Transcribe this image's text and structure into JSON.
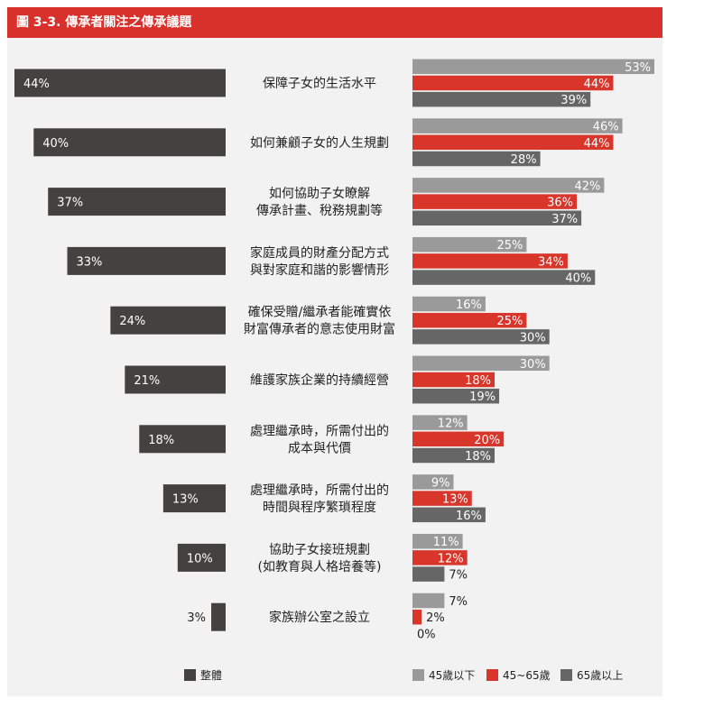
{
  "figure_title": "圖 3-3. 傳承者關注之傳承議題",
  "colors": {
    "title_bar": "#d8302a",
    "overall": "#454141",
    "under45": "#9a9a9a",
    "age45to65": "#d8352b",
    "over65": "#666666",
    "panel": "#f2f2f2"
  },
  "legend": {
    "overall": "整體",
    "under45": "45歲以下",
    "age45to65": "45~65歲",
    "over65": "65歲以上"
  },
  "chart_data": {
    "type": "bar",
    "title": "圖 3-3. 傳承者關注之傳承議題",
    "unit": "%",
    "categories": [
      "保障子女的生活水平",
      "如何兼顧子女的人生規劃",
      "如何協助子女瞭解\n傳承計畫、稅務規劃等",
      "家庭成員的財產分配方式\n與對家庭和諧的影響情形",
      "確保受贈/繼承者能確實依\n財富傳承者的意志使用財富",
      "維護家族企業的持續經營",
      "處理繼承時，所需付出的\n成本與代價",
      "處理繼承時，所需付出的\n時間與程序繁瑣程度",
      "協助子女接班規劃\n(如教育與人格培養等)",
      "家族辦公室之設立"
    ],
    "series": [
      {
        "key": "overall",
        "name": "整體",
        "values": [
          44,
          40,
          37,
          33,
          24,
          21,
          18,
          13,
          10,
          3
        ]
      },
      {
        "key": "under45",
        "name": "45歲以下",
        "values": [
          53,
          46,
          42,
          25,
          16,
          30,
          12,
          9,
          11,
          7
        ]
      },
      {
        "key": "age45to65",
        "name": "45~65歲",
        "values": [
          44,
          44,
          36,
          34,
          25,
          18,
          20,
          13,
          12,
          2
        ]
      },
      {
        "key": "over65",
        "name": "65歲以上",
        "values": [
          39,
          28,
          37,
          40,
          30,
          19,
          18,
          16,
          7,
          0
        ]
      }
    ],
    "legend_position": "bottom",
    "grid": false
  }
}
